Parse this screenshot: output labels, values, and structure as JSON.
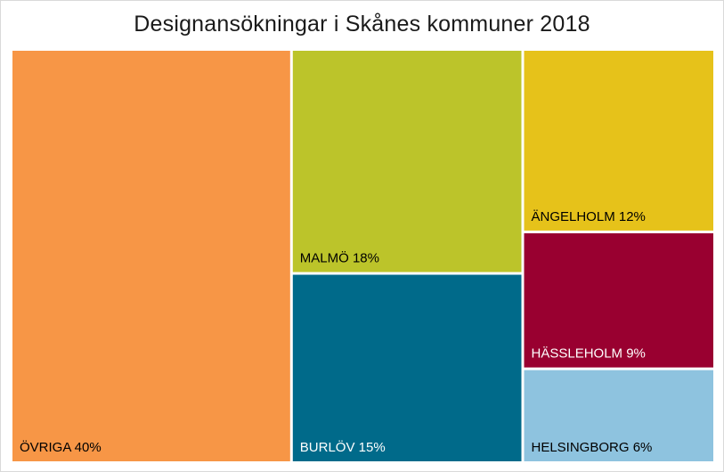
{
  "chart_data": {
    "type": "treemap",
    "title": "Designansökningar i Skånes kommuner 2018",
    "items": [
      {
        "name": "ÖVRIGA",
        "value": 40,
        "label": "ÖVRIGA 40%",
        "color": "#f79646",
        "text_color": "#000000"
      },
      {
        "name": "MALMÖ",
        "value": 18,
        "label": "MALMÖ 18%",
        "color": "#bcc42a",
        "text_color": "#000000"
      },
      {
        "name": "BURLÖV",
        "value": 15,
        "label": "BURLÖV 15%",
        "color": "#006a8a",
        "text_color": "#ffffff"
      },
      {
        "name": "ÄNGELHOLM",
        "value": 12,
        "label": "ÄNGELHOLM 12%",
        "color": "#e6c21a",
        "text_color": "#000000"
      },
      {
        "name": "HÄSSLEHOLM",
        "value": 9,
        "label": "HÄSSLEHOLM 9%",
        "color": "#990030",
        "text_color": "#ffffff"
      },
      {
        "name": "HELSINGBORG",
        "value": 6,
        "label": "HELSINGBORG 6%",
        "color": "#8ec3df",
        "text_color": "#000000"
      }
    ]
  }
}
